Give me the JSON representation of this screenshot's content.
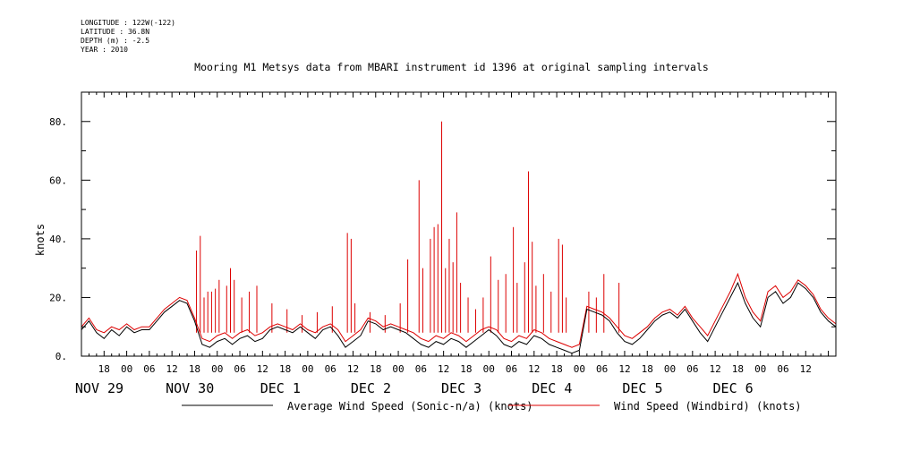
{
  "meta": {
    "lines": [
      "LONGITUDE : 122W(-122)",
      "LATITUDE : 36.8N",
      "DEPTH (m) : -2.5",
      "YEAR : 2010"
    ]
  },
  "title": "Mooring M1 Metsys data from MBARI instrument id 1396 at original sampling intervals",
  "colors": {
    "avg": "#000000",
    "windbird": "#dd0000",
    "axis": "#000000"
  },
  "chart_data": {
    "type": "line",
    "title": "Mooring M1 Metsys data from MBARI instrument id 1396 at original sampling intervals",
    "xlabel": "",
    "ylabel": "knots",
    "ylim": [
      0,
      90
    ],
    "xlim_hours_from_nov29_12utc": [
      0,
      200
    ],
    "y_ticks": [
      0,
      20,
      40,
      60,
      80
    ],
    "y_tick_labels": [
      "0.",
      "20.",
      "40.",
      "60.",
      "80."
    ],
    "hour_ticks": [
      {
        "h": 6,
        "label": "18"
      },
      {
        "h": 12,
        "label": "00"
      },
      {
        "h": 18,
        "label": "06"
      },
      {
        "h": 24,
        "label": "12"
      },
      {
        "h": 30,
        "label": "18"
      },
      {
        "h": 36,
        "label": "00"
      },
      {
        "h": 42,
        "label": "06"
      },
      {
        "h": 48,
        "label": "12"
      },
      {
        "h": 54,
        "label": "18"
      },
      {
        "h": 60,
        "label": "00"
      },
      {
        "h": 66,
        "label": "06"
      },
      {
        "h": 72,
        "label": "12"
      },
      {
        "h": 78,
        "label": "18"
      },
      {
        "h": 84,
        "label": "00"
      },
      {
        "h": 90,
        "label": "06"
      },
      {
        "h": 96,
        "label": "12"
      },
      {
        "h": 102,
        "label": "18"
      },
      {
        "h": 108,
        "label": "00"
      },
      {
        "h": 114,
        "label": "06"
      },
      {
        "h": 120,
        "label": "12"
      },
      {
        "h": 126,
        "label": "18"
      },
      {
        "h": 132,
        "label": "00"
      },
      {
        "h": 138,
        "label": "06"
      },
      {
        "h": 144,
        "label": "12"
      },
      {
        "h": 150,
        "label": "18"
      },
      {
        "h": 156,
        "label": "00"
      },
      {
        "h": 162,
        "label": "06"
      },
      {
        "h": 168,
        "label": "12"
      },
      {
        "h": 174,
        "label": "18"
      },
      {
        "h": 180,
        "label": "00"
      },
      {
        "h": 186,
        "label": "06"
      },
      {
        "h": 192,
        "label": "12"
      }
    ],
    "day_labels": [
      {
        "h": 0,
        "label": "NOV 29"
      },
      {
        "h": 24,
        "label": "NOV 30"
      },
      {
        "h": 48,
        "label": "DEC  1"
      },
      {
        "h": 72,
        "label": "DEC  2"
      },
      {
        "h": 96,
        "label": "DEC  3"
      },
      {
        "h": 120,
        "label": "DEC  4"
      },
      {
        "h": 144,
        "label": "DEC  5"
      },
      {
        "h": 168,
        "label": "DEC  6"
      }
    ],
    "series": [
      {
        "name": "Average Wind Speed (Sonic-n/a) (knots)",
        "x": [
          0,
          2,
          4,
          6,
          8,
          10,
          12,
          14,
          16,
          18,
          20,
          22,
          24,
          26,
          28,
          30,
          32,
          34,
          36,
          38,
          40,
          42,
          44,
          46,
          48,
          50,
          52,
          54,
          56,
          58,
          60,
          62,
          64,
          66,
          68,
          70,
          72,
          74,
          76,
          78,
          80,
          82,
          84,
          86,
          88,
          90,
          92,
          94,
          96,
          98,
          100,
          102,
          104,
          106,
          108,
          110,
          112,
          114,
          116,
          118,
          120,
          122,
          124,
          126,
          128,
          130,
          132,
          134,
          136,
          138,
          140,
          142,
          144,
          146,
          148,
          150,
          152,
          154,
          156,
          158,
          160,
          162,
          164,
          166,
          168,
          170,
          172,
          174,
          176,
          178,
          180,
          182,
          184,
          186,
          188,
          190,
          192,
          194,
          196,
          198,
          200
        ],
        "values": [
          9,
          12,
          8,
          6,
          9,
          7,
          10,
          8,
          9,
          9,
          12,
          15,
          17,
          19,
          18,
          12,
          4,
          3,
          5,
          6,
          4,
          6,
          7,
          5,
          6,
          9,
          10,
          9,
          8,
          10,
          8,
          6,
          9,
          10,
          7,
          3,
          5,
          7,
          12,
          11,
          9,
          10,
          9,
          8,
          6,
          4,
          3,
          5,
          4,
          6,
          5,
          3,
          5,
          7,
          9,
          7,
          4,
          3,
          5,
          4,
          7,
          6,
          4,
          3,
          2,
          1,
          2,
          16,
          15,
          14,
          12,
          8,
          5,
          4,
          6,
          9,
          12,
          14,
          15,
          13,
          16,
          12,
          8,
          5,
          10,
          15,
          20,
          25,
          18,
          13,
          10,
          20,
          22,
          18,
          20,
          25,
          23,
          20,
          15,
          12,
          10
        ]
      },
      {
        "name": "Wind Speed (Windbird) (knots)",
        "x": [
          0,
          2,
          4,
          6,
          8,
          10,
          12,
          14,
          16,
          18,
          20,
          22,
          24,
          26,
          28,
          30,
          32,
          34,
          36,
          38,
          40,
          42,
          44,
          46,
          48,
          50,
          52,
          54,
          56,
          58,
          60,
          62,
          64,
          66,
          68,
          70,
          72,
          74,
          76,
          78,
          80,
          82,
          84,
          86,
          88,
          90,
          92,
          94,
          96,
          98,
          100,
          102,
          104,
          106,
          108,
          110,
          112,
          114,
          116,
          118,
          120,
          122,
          124,
          126,
          128,
          130,
          132,
          134,
          136,
          138,
          140,
          142,
          144,
          146,
          148,
          150,
          152,
          154,
          156,
          158,
          160,
          162,
          164,
          166,
          168,
          170,
          172,
          174,
          176,
          178,
          180,
          182,
          184,
          186,
          188,
          190,
          192,
          194,
          196,
          198,
          200
        ],
        "values": [
          10,
          13,
          9,
          8,
          10,
          9,
          11,
          9,
          10,
          10,
          13,
          16,
          18,
          20,
          19,
          13,
          6,
          5,
          7,
          8,
          6,
          8,
          9,
          7,
          8,
          10,
          11,
          10,
          9,
          11,
          9,
          8,
          10,
          11,
          9,
          5,
          7,
          9,
          13,
          12,
          10,
          11,
          10,
          9,
          8,
          6,
          5,
          7,
          6,
          8,
          7,
          5,
          7,
          9,
          10,
          9,
          6,
          5,
          7,
          6,
          9,
          8,
          6,
          5,
          4,
          3,
          4,
          17,
          16,
          15,
          13,
          10,
          7,
          6,
          8,
          10,
          13,
          15,
          16,
          14,
          17,
          13,
          10,
          7,
          12,
          17,
          22,
          28,
          20,
          15,
          12,
          22,
          24,
          20,
          22,
          26,
          24,
          21,
          16,
          13,
          11
        ],
        "spikes": [
          {
            "h": 30.5,
            "v": 36
          },
          {
            "h": 31.5,
            "v": 41
          },
          {
            "h": 32.5,
            "v": 20
          },
          {
            "h": 33.5,
            "v": 22
          },
          {
            "h": 34.5,
            "v": 22
          },
          {
            "h": 35.5,
            "v": 23
          },
          {
            "h": 36.5,
            "v": 26
          },
          {
            "h": 38.5,
            "v": 24
          },
          {
            "h": 39.5,
            "v": 30
          },
          {
            "h": 40.5,
            "v": 26
          },
          {
            "h": 42.5,
            "v": 20
          },
          {
            "h": 44.5,
            "v": 22
          },
          {
            "h": 46.5,
            "v": 24
          },
          {
            "h": 50.5,
            "v": 18
          },
          {
            "h": 54.5,
            "v": 16
          },
          {
            "h": 58.5,
            "v": 14
          },
          {
            "h": 62.5,
            "v": 15
          },
          {
            "h": 66.5,
            "v": 17
          },
          {
            "h": 70.5,
            "v": 42
          },
          {
            "h": 71.5,
            "v": 40
          },
          {
            "h": 72.5,
            "v": 18
          },
          {
            "h": 76.5,
            "v": 15
          },
          {
            "h": 80.5,
            "v": 14
          },
          {
            "h": 84.5,
            "v": 18
          },
          {
            "h": 86.5,
            "v": 33
          },
          {
            "h": 89.5,
            "v": 60
          },
          {
            "h": 90.5,
            "v": 30
          },
          {
            "h": 92.5,
            "v": 40
          },
          {
            "h": 93.5,
            "v": 44
          },
          {
            "h": 94.5,
            "v": 45
          },
          {
            "h": 95.5,
            "v": 80
          },
          {
            "h": 96.5,
            "v": 30
          },
          {
            "h": 97.5,
            "v": 40
          },
          {
            "h": 98.5,
            "v": 32
          },
          {
            "h": 99.5,
            "v": 49
          },
          {
            "h": 100.5,
            "v": 25
          },
          {
            "h": 102.5,
            "v": 20
          },
          {
            "h": 104.5,
            "v": 16
          },
          {
            "h": 106.5,
            "v": 20
          },
          {
            "h": 108.5,
            "v": 34
          },
          {
            "h": 110.5,
            "v": 26
          },
          {
            "h": 112.5,
            "v": 28
          },
          {
            "h": 114.5,
            "v": 44
          },
          {
            "h": 115.5,
            "v": 25
          },
          {
            "h": 117.5,
            "v": 32
          },
          {
            "h": 118.5,
            "v": 63
          },
          {
            "h": 119.5,
            "v": 39
          },
          {
            "h": 120.5,
            "v": 24
          },
          {
            "h": 122.5,
            "v": 28
          },
          {
            "h": 124.5,
            "v": 22
          },
          {
            "h": 126.5,
            "v": 40
          },
          {
            "h": 127.5,
            "v": 38
          },
          {
            "h": 128.5,
            "v": 20
          },
          {
            "h": 134.5,
            "v": 22
          },
          {
            "h": 136.5,
            "v": 20
          },
          {
            "h": 138.5,
            "v": 28
          },
          {
            "h": 142.5,
            "v": 25
          }
        ]
      }
    ],
    "legend": "bottom"
  }
}
